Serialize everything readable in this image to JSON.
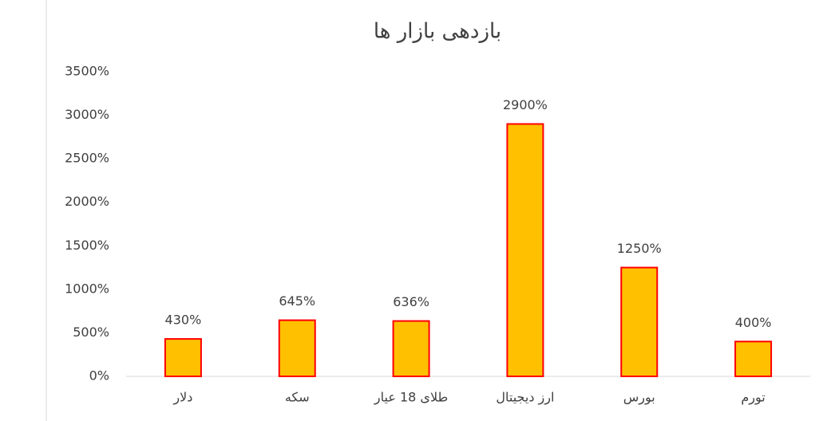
{
  "chart_data": {
    "type": "bar",
    "title": "بازدهی بازار ها",
    "categories": [
      "دلار",
      "سکه",
      "طلای 18 عیار",
      "ارز دیجیتال",
      "بورس",
      "تورم"
    ],
    "values": [
      430,
      645,
      636,
      2900,
      1250,
      400
    ],
    "value_labels": [
      "430%",
      "645%",
      "636%",
      "2900%",
      "1250%",
      "400%"
    ],
    "color": "#ffc000",
    "edge_color": "#ff0000",
    "ylim": [
      0,
      3500
    ],
    "yticks": [
      {
        "value": 0,
        "label": "0%"
      },
      {
        "value": 500,
        "label": "500%"
      },
      {
        "value": 1000,
        "label": "1000%"
      },
      {
        "value": 1500,
        "label": "1500%"
      },
      {
        "value": 2000,
        "label": "2000%"
      },
      {
        "value": 2500,
        "label": "2500%"
      },
      {
        "value": 3000,
        "label": "3000%"
      },
      {
        "value": 3500,
        "label": "3500%"
      }
    ],
    "grid": false
  }
}
